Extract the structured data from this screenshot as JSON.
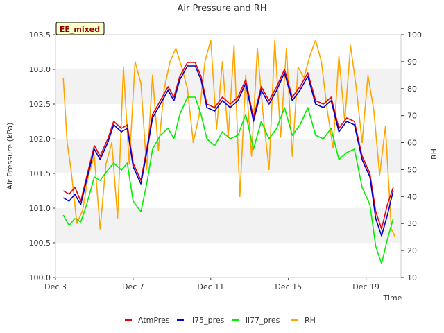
{
  "chart_data": {
    "type": "line",
    "title": "Air Pressure and RH",
    "xlabel": "Time",
    "ylabel": "Air Pressure (kPa)",
    "y2label": "RH",
    "badge": "EE_mixed",
    "x_range_days": [
      3,
      20.8
    ],
    "x_ticks": [
      {
        "day": 3,
        "label": "Dec 3"
      },
      {
        "day": 7,
        "label": "Dec 7"
      },
      {
        "day": 11,
        "label": "Dec 11"
      },
      {
        "day": 15,
        "label": "Dec 15"
      },
      {
        "day": 19,
        "label": "Dec 19"
      }
    ],
    "ylim": [
      100.0,
      103.5
    ],
    "y_ticks": [
      "100.0",
      "100.5",
      "101.0",
      "101.5",
      "102.0",
      "102.5",
      "103.0",
      "103.5"
    ],
    "y2lim": [
      10,
      100
    ],
    "y2_ticks": [
      "10",
      "20",
      "30",
      "40",
      "50",
      "60",
      "70",
      "80",
      "90",
      "100"
    ],
    "grid": "horizontal bands",
    "legend_position": "bottom",
    "series": [
      {
        "name": "AtmPres",
        "color": "#e8000b",
        "axis": "left",
        "x": [
          3.4,
          3.7,
          4.0,
          4.3,
          4.6,
          5.0,
          5.3,
          5.7,
          6.0,
          6.4,
          6.7,
          7.0,
          7.4,
          7.7,
          8.0,
          8.4,
          8.8,
          9.1,
          9.4,
          9.8,
          10.2,
          10.5,
          10.8,
          11.2,
          11.6,
          12.0,
          12.4,
          12.8,
          13.2,
          13.6,
          14.0,
          14.4,
          14.8,
          15.2,
          15.6,
          16.0,
          16.4,
          16.8,
          17.2,
          17.6,
          18.0,
          18.4,
          18.8,
          19.2,
          19.5,
          19.8,
          20.1,
          20.4
        ],
        "y": [
          101.25,
          101.2,
          101.3,
          101.1,
          101.45,
          101.9,
          101.75,
          102.0,
          102.25,
          102.15,
          102.2,
          101.65,
          101.4,
          101.85,
          102.35,
          102.55,
          102.75,
          102.6,
          102.9,
          103.1,
          103.1,
          102.9,
          102.5,
          102.45,
          102.6,
          102.5,
          102.6,
          102.85,
          102.3,
          102.75,
          102.55,
          102.75,
          103.0,
          102.6,
          102.75,
          102.95,
          102.55,
          102.5,
          102.6,
          102.15,
          102.3,
          102.25,
          101.75,
          101.5,
          100.95,
          100.7,
          101.05,
          101.3
        ]
      },
      {
        "name": "li75_pres",
        "color": "#0000cc",
        "axis": "left",
        "x": [
          3.4,
          3.7,
          4.0,
          4.3,
          4.6,
          5.0,
          5.3,
          5.7,
          6.0,
          6.4,
          6.7,
          7.0,
          7.4,
          7.7,
          8.0,
          8.4,
          8.8,
          9.1,
          9.4,
          9.8,
          10.2,
          10.5,
          10.8,
          11.2,
          11.6,
          12.0,
          12.4,
          12.8,
          13.2,
          13.6,
          14.0,
          14.4,
          14.8,
          15.2,
          15.6,
          16.0,
          16.4,
          16.8,
          17.2,
          17.6,
          18.0,
          18.4,
          18.8,
          19.2,
          19.5,
          19.8,
          20.1,
          20.4
        ],
        "y": [
          101.15,
          101.1,
          101.2,
          101.05,
          101.4,
          101.85,
          101.7,
          101.95,
          102.2,
          102.1,
          102.15,
          101.6,
          101.35,
          101.8,
          102.3,
          102.5,
          102.7,
          102.55,
          102.85,
          103.05,
          103.05,
          102.85,
          102.45,
          102.4,
          102.55,
          102.45,
          102.55,
          102.8,
          102.25,
          102.7,
          102.5,
          102.7,
          102.95,
          102.55,
          102.7,
          102.9,
          102.5,
          102.45,
          102.55,
          102.1,
          102.25,
          102.2,
          101.7,
          101.45,
          100.85,
          100.6,
          100.9,
          101.25
        ]
      },
      {
        "name": "li77_pres",
        "color": "#00ee00",
        "axis": "left",
        "x": [
          3.4,
          3.7,
          4.0,
          4.3,
          4.6,
          5.0,
          5.3,
          5.7,
          6.0,
          6.4,
          6.7,
          7.0,
          7.4,
          7.7,
          8.0,
          8.4,
          8.8,
          9.1,
          9.4,
          9.8,
          10.2,
          10.5,
          10.8,
          11.2,
          11.6,
          12.0,
          12.4,
          12.8,
          13.2,
          13.6,
          14.0,
          14.4,
          14.8,
          15.2,
          15.6,
          16.0,
          16.4,
          16.8,
          17.2,
          17.6,
          18.0,
          18.4,
          18.8,
          19.2,
          19.5,
          19.8,
          20.1,
          20.4
        ],
        "y": [
          100.9,
          100.75,
          100.85,
          100.8,
          101.05,
          101.45,
          101.4,
          101.55,
          101.65,
          101.55,
          101.65,
          101.1,
          100.95,
          101.35,
          101.85,
          102.05,
          102.15,
          102.0,
          102.35,
          102.6,
          102.6,
          102.35,
          102.0,
          101.9,
          102.1,
          102.0,
          102.05,
          102.35,
          101.85,
          102.25,
          102.0,
          102.15,
          102.45,
          102.05,
          102.2,
          102.45,
          102.05,
          102.0,
          102.15,
          101.7,
          101.8,
          101.85,
          101.3,
          101.05,
          100.45,
          100.2,
          100.55,
          100.85
        ]
      },
      {
        "name": "RH",
        "color": "#ffa500",
        "axis": "right",
        "x": [
          3.4,
          3.6,
          3.8,
          4.1,
          4.4,
          4.7,
          5.0,
          5.3,
          5.6,
          5.9,
          6.2,
          6.5,
          6.8,
          7.1,
          7.4,
          7.7,
          8.0,
          8.3,
          8.6,
          8.9,
          9.2,
          9.5,
          9.8,
          10.1,
          10.4,
          10.7,
          11.0,
          11.3,
          11.6,
          11.9,
          12.2,
          12.5,
          12.8,
          13.1,
          13.4,
          13.7,
          14.0,
          14.3,
          14.6,
          14.9,
          15.2,
          15.5,
          15.8,
          16.1,
          16.4,
          16.7,
          17.0,
          17.3,
          17.6,
          17.9,
          18.2,
          18.5,
          18.8,
          19.1,
          19.4,
          19.7,
          20.0,
          20.3,
          20.5
        ],
        "y": [
          84,
          60,
          50,
          30,
          35,
          48,
          55,
          28,
          52,
          60,
          32,
          88,
          52,
          90,
          82,
          50,
          85,
          57,
          80,
          90,
          95,
          88,
          80,
          60,
          70,
          90,
          98,
          65,
          90,
          62,
          96,
          40,
          85,
          55,
          95,
          70,
          50,
          98,
          62,
          95,
          55,
          88,
          84,
          92,
          98,
          90,
          72,
          58,
          92,
          68,
          96,
          80,
          60,
          85,
          72,
          48,
          66,
          28,
          25
        ]
      }
    ]
  },
  "legend": {
    "items": [
      {
        "label": "AtmPres",
        "color": "#e8000b"
      },
      {
        "label": "li75_pres",
        "color": "#0000cc"
      },
      {
        "label": "li77_pres",
        "color": "#00ee00"
      },
      {
        "label": "RH",
        "color": "#ffa500"
      }
    ]
  }
}
